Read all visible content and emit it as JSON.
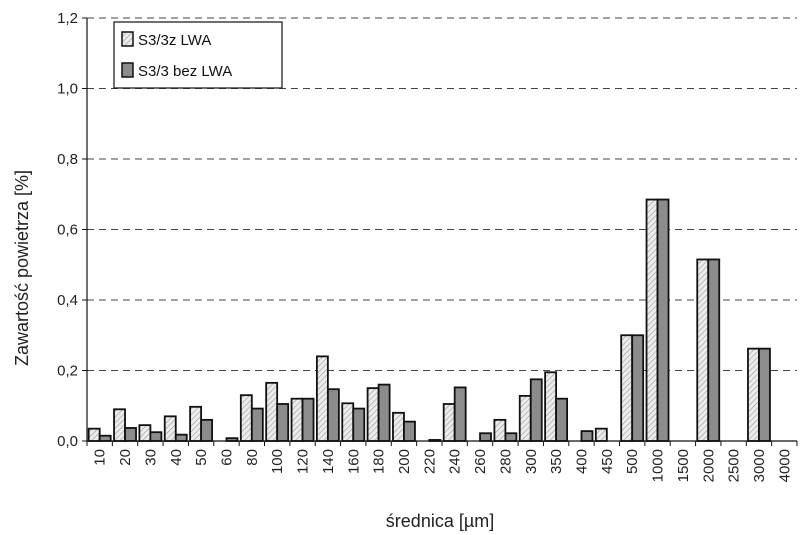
{
  "chart_data": {
    "type": "bar",
    "xlabel": "średnica [µm]",
    "ylabel": "Zawartość powietrza [%]",
    "ylim": [
      0,
      1.2
    ],
    "yticks": [
      "0,0",
      "0,2",
      "0,4",
      "0,6",
      "0,8",
      "1,0",
      "1,2"
    ],
    "grid": true,
    "legend_position": "top-left",
    "categories": [
      "10",
      "20",
      "30",
      "40",
      "50",
      "60",
      "80",
      "100",
      "120",
      "140",
      "160",
      "180",
      "200",
      "220",
      "240",
      "260",
      "280",
      "300",
      "350",
      "400",
      "450",
      "500",
      "1000",
      "1500",
      "2000",
      "2500",
      "3000",
      "4000"
    ],
    "series": [
      {
        "name": "S3/3z LWA",
        "pattern": "hatched-light",
        "values": [
          0.035,
          0.09,
          0.045,
          0.07,
          0.097,
          0,
          0.13,
          0.165,
          0.12,
          0.24,
          0.107,
          0.15,
          0.08,
          0,
          0.105,
          0,
          0.06,
          0.128,
          0.195,
          0,
          0.035,
          0.3,
          0.685,
          0,
          0.515,
          0,
          0.262,
          0
        ]
      },
      {
        "name": "S3/3 bez LWA",
        "pattern": "solid-gray",
        "values": [
          0.015,
          0.037,
          0.025,
          0.018,
          0.06,
          0.008,
          0.092,
          0.105,
          0.12,
          0.147,
          0.092,
          0.16,
          0.055,
          0.003,
          0.152,
          0.022,
          0.022,
          0.175,
          0.12,
          0.028,
          0,
          0.3,
          0.685,
          0,
          0.515,
          0,
          0.262,
          0
        ]
      }
    ]
  },
  "colors": {
    "series_light": "#e6e6e6",
    "series_dark": "#8c8c8c",
    "outline": "#111111",
    "grid": "#444444"
  }
}
